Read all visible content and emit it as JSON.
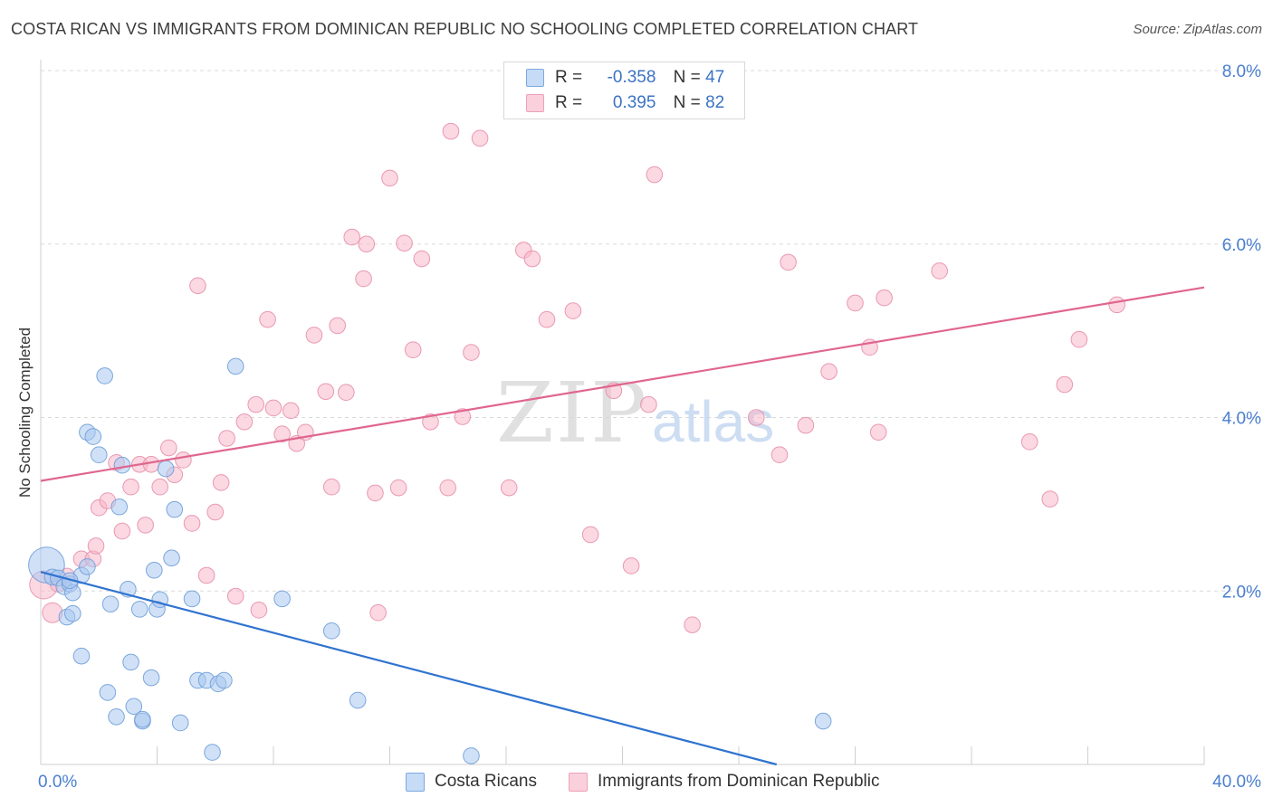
{
  "header": {
    "title": "COSTA RICAN VS IMMIGRANTS FROM DOMINICAN REPUBLIC NO SCHOOLING COMPLETED CORRELATION CHART",
    "source": "Source: ZipAtlas.com"
  },
  "watermark": {
    "zip": "ZIP",
    "atlas": "atlas"
  },
  "legend_top": {
    "rows": [
      {
        "r_label": "R =",
        "r_value": "-0.358",
        "n_label": "N =",
        "n_value": "47",
        "color": "#a9c8f0"
      },
      {
        "r_label": "R =",
        "r_value": "0.395",
        "n_label": "N =",
        "n_value": "82",
        "color": "#f7b8cb"
      }
    ]
  },
  "legend_bottom": [
    {
      "label": "Costa Ricans",
      "color": "#a9c8f0"
    },
    {
      "label": "Immigrants from Dominican Republic",
      "color": "#f7b8cb"
    }
  ],
  "colors": {
    "blue_fill": "#a9c8f0",
    "blue_stroke": "#6f9ed8",
    "blue_line": "#2f73d0",
    "pink_fill": "#f7b8cb",
    "pink_stroke": "#e88fab",
    "pink_line": "#e0668f",
    "axis_text": "#4a7fd0",
    "grid": "#d9d9d9"
  },
  "chart_data": {
    "type": "scatter",
    "title": "COSTA RICAN VS IMMIGRANTS FROM DOMINICAN REPUBLIC NO SCHOOLING COMPLETED CORRELATION CHART",
    "xlabel": "",
    "ylabel": "No Schooling Completed",
    "xlim": [
      0,
      40
    ],
    "ylim": [
      0,
      8
    ],
    "x_tick_labels": [
      "0.0%",
      "40.0%"
    ],
    "y_ticks": [
      2,
      4,
      6,
      8
    ],
    "y_tick_labels": [
      "2.0%",
      "4.0%",
      "6.0%",
      "8.0%"
    ],
    "grid": "horizontal-dashed",
    "legend_position": "top-center",
    "series": [
      {
        "name": "Costa Ricans",
        "color": "#a9c8f0",
        "trend": {
          "x": [
            0.0,
            25.3
          ],
          "y": [
            2.22,
            0.0
          ]
        },
        "points": [
          [
            0.2,
            2.3,
            18
          ],
          [
            0.4,
            2.16,
            8
          ],
          [
            0.6,
            2.15,
            8
          ],
          [
            0.8,
            2.05,
            8
          ],
          [
            1.0,
            2.08,
            8
          ],
          [
            0.9,
            1.7,
            8
          ],
          [
            1.1,
            1.74,
            8
          ],
          [
            1.1,
            1.98,
            8
          ],
          [
            1.4,
            2.18,
            8
          ],
          [
            1.4,
            1.25,
            8
          ],
          [
            1.6,
            2.28,
            8
          ],
          [
            2.2,
            4.48,
            8
          ],
          [
            1.6,
            3.83,
            8
          ],
          [
            1.8,
            3.78,
            8
          ],
          [
            2.0,
            3.57,
            8
          ],
          [
            2.4,
            1.85,
            8
          ],
          [
            2.3,
            0.83,
            8
          ],
          [
            2.6,
            0.55,
            8
          ],
          [
            2.7,
            2.97,
            8
          ],
          [
            2.8,
            3.45,
            8
          ],
          [
            3.0,
            2.02,
            8
          ],
          [
            3.1,
            1.18,
            8
          ],
          [
            3.2,
            0.67,
            8
          ],
          [
            3.4,
            1.79,
            8
          ],
          [
            3.5,
            0.5,
            8
          ],
          [
            3.5,
            0.52,
            8
          ],
          [
            3.8,
            1.0,
            8
          ],
          [
            3.9,
            2.24,
            8
          ],
          [
            4.0,
            1.79,
            8
          ],
          [
            4.1,
            1.9,
            8
          ],
          [
            4.3,
            3.41,
            8
          ],
          [
            4.5,
            2.38,
            8
          ],
          [
            4.6,
            2.94,
            8
          ],
          [
            4.8,
            0.48,
            8
          ],
          [
            5.2,
            1.91,
            8
          ],
          [
            5.4,
            0.97,
            8
          ],
          [
            5.7,
            0.97,
            8
          ],
          [
            6.1,
            0.93,
            8
          ],
          [
            6.3,
            0.97,
            8
          ],
          [
            5.9,
            0.14,
            8
          ],
          [
            6.7,
            4.59,
            8
          ],
          [
            8.3,
            1.91,
            8
          ],
          [
            10.0,
            1.54,
            8
          ],
          [
            10.9,
            0.74,
            8
          ],
          [
            14.8,
            0.1,
            8
          ],
          [
            26.9,
            0.5,
            8
          ],
          [
            1.0,
            2.12,
            8
          ]
        ]
      },
      {
        "name": "Immigrants from Dominican Republic",
        "color": "#f7b8cb",
        "trend": {
          "x": [
            0.0,
            40.0
          ],
          "y": [
            3.27,
            5.5
          ]
        },
        "points": [
          [
            0.1,
            2.07,
            14
          ],
          [
            0.4,
            1.75,
            10
          ],
          [
            0.6,
            2.08,
            8
          ],
          [
            0.9,
            2.17,
            8
          ],
          [
            1.4,
            2.37,
            8
          ],
          [
            1.8,
            2.37,
            8
          ],
          [
            1.9,
            2.52,
            8
          ],
          [
            2.0,
            2.96,
            8
          ],
          [
            2.3,
            3.04,
            8
          ],
          [
            2.6,
            3.48,
            8
          ],
          [
            2.8,
            2.69,
            8
          ],
          [
            3.1,
            3.2,
            8
          ],
          [
            3.4,
            3.46,
            8
          ],
          [
            3.6,
            2.76,
            8
          ],
          [
            3.8,
            3.46,
            8
          ],
          [
            4.1,
            3.2,
            8
          ],
          [
            4.4,
            3.65,
            8
          ],
          [
            4.6,
            3.34,
            8
          ],
          [
            4.9,
            3.51,
            8
          ],
          [
            5.2,
            2.78,
            8
          ],
          [
            5.4,
            5.52,
            8
          ],
          [
            5.7,
            2.18,
            8
          ],
          [
            6.0,
            2.91,
            8
          ],
          [
            6.2,
            3.25,
            8
          ],
          [
            6.4,
            3.76,
            8
          ],
          [
            6.7,
            1.94,
            8
          ],
          [
            7.0,
            3.95,
            8
          ],
          [
            7.4,
            4.15,
            8
          ],
          [
            7.5,
            1.78,
            8
          ],
          [
            7.8,
            5.13,
            8
          ],
          [
            8.0,
            4.11,
            8
          ],
          [
            8.3,
            3.81,
            8
          ],
          [
            8.6,
            4.08,
            8
          ],
          [
            8.8,
            3.7,
            8
          ],
          [
            9.1,
            3.83,
            8
          ],
          [
            9.4,
            4.95,
            8
          ],
          [
            9.8,
            4.3,
            8
          ],
          [
            10.0,
            3.2,
            8
          ],
          [
            10.2,
            5.06,
            8
          ],
          [
            10.5,
            4.29,
            8
          ],
          [
            10.7,
            6.08,
            8
          ],
          [
            11.1,
            5.6,
            8
          ],
          [
            11.2,
            6.0,
            8
          ],
          [
            11.5,
            3.13,
            8
          ],
          [
            11.6,
            1.75,
            8
          ],
          [
            12.0,
            6.76,
            8
          ],
          [
            12.3,
            3.19,
            8
          ],
          [
            12.5,
            6.01,
            8
          ],
          [
            12.8,
            4.78,
            8
          ],
          [
            13.1,
            5.83,
            8
          ],
          [
            13.4,
            3.95,
            8
          ],
          [
            14.1,
            7.3,
            8
          ],
          [
            14.0,
            3.19,
            8
          ],
          [
            14.5,
            4.01,
            8
          ],
          [
            14.8,
            4.75,
            8
          ],
          [
            15.1,
            7.22,
            8
          ],
          [
            16.1,
            3.19,
            8
          ],
          [
            16.6,
            5.93,
            8
          ],
          [
            16.9,
            5.83,
            8
          ],
          [
            17.4,
            5.13,
            8
          ],
          [
            18.3,
            5.23,
            8
          ],
          [
            18.9,
            2.65,
            8
          ],
          [
            19.7,
            4.31,
            8
          ],
          [
            20.3,
            2.29,
            8
          ],
          [
            20.9,
            4.15,
            8
          ],
          [
            21.1,
            6.8,
            8
          ],
          [
            22.4,
            1.61,
            8
          ],
          [
            24.6,
            4.0,
            8
          ],
          [
            25.4,
            3.57,
            8
          ],
          [
            25.7,
            5.79,
            8
          ],
          [
            26.3,
            3.91,
            8
          ],
          [
            27.1,
            4.53,
            8
          ],
          [
            28.0,
            5.32,
            8
          ],
          [
            28.5,
            4.81,
            8
          ],
          [
            28.8,
            3.83,
            8
          ],
          [
            29.0,
            5.38,
            8
          ],
          [
            30.9,
            5.69,
            8
          ],
          [
            34.0,
            3.72,
            8
          ],
          [
            34.7,
            3.06,
            8
          ],
          [
            35.2,
            4.38,
            8
          ],
          [
            35.7,
            4.9,
            8
          ],
          [
            37.0,
            5.3,
            8
          ]
        ]
      }
    ]
  }
}
